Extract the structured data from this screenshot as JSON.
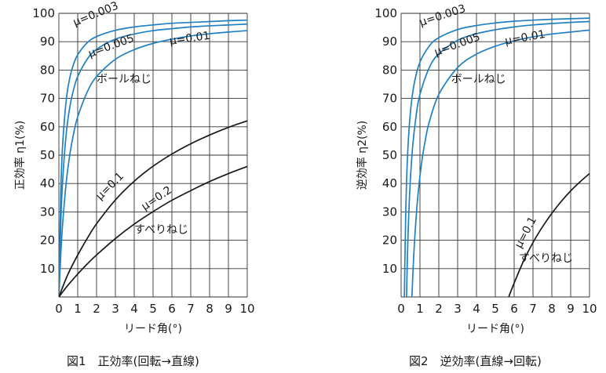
{
  "colors": {
    "ball": "#1f80c4",
    "sliding": "#1a1a1a",
    "grid": "#333333"
  },
  "chart_data": [
    {
      "type": "line",
      "caption": "図1　正効率(回転→直線)",
      "xlabel": "リード角(°)",
      "ylabel": "正効率 η1(%)",
      "xlim": [
        0,
        10
      ],
      "ylim": [
        0,
        100
      ],
      "x_ticks": [
        "0",
        "1",
        "2",
        "3",
        "4",
        "5",
        "6",
        "7",
        "8",
        "9",
        "10"
      ],
      "y_ticks": [
        "10",
        "20",
        "30",
        "40",
        "50",
        "60",
        "70",
        "80",
        "90",
        "100"
      ],
      "grid": true,
      "series": [
        {
          "name": "μ=0.003",
          "group": "ball",
          "x": [
            0,
            0.1,
            0.2,
            0.4,
            0.6,
            0.8,
            1,
            1.5,
            2,
            3,
            4,
            5,
            6,
            7,
            8,
            9,
            10
          ],
          "y": [
            0,
            36.4,
            53.6,
            70.0,
            77.9,
            82.4,
            85.4,
            89.6,
            91.8,
            94.0,
            95.2,
            95.9,
            96.5,
            96.8,
            97.1,
            97.4,
            97.6
          ]
        },
        {
          "name": "μ=0.005",
          "group": "ball",
          "x": [
            0,
            0.1,
            0.2,
            0.4,
            0.6,
            0.8,
            1,
            1.5,
            2,
            3,
            4,
            5,
            6,
            7,
            8,
            9,
            10
          ],
          "y": [
            0,
            25.8,
            41.0,
            58.2,
            67.7,
            73.6,
            77.7,
            83.8,
            87.3,
            90.9,
            92.7,
            93.9,
            94.6,
            95.2,
            95.6,
            95.9,
            96.2
          ]
        },
        {
          "name": "μ=0.01",
          "group": "ball",
          "x": [
            0,
            0.1,
            0.2,
            0.4,
            0.6,
            0.8,
            1,
            1.5,
            2,
            3,
            4,
            5,
            6,
            7,
            8,
            9,
            10
          ],
          "y": [
            0,
            14.8,
            25.8,
            41.0,
            51.0,
            58.2,
            63.5,
            72.2,
            77.7,
            83.8,
            87.2,
            89.4,
            90.9,
            92.0,
            92.8,
            93.4,
            93.9
          ]
        },
        {
          "name": "μ=0.1",
          "group": "sliding",
          "x": [
            0,
            0.25,
            0.5,
            1,
            1.5,
            2,
            3,
            4,
            5,
            6,
            7,
            8,
            9,
            10
          ],
          "y": [
            0,
            4.3,
            8.3,
            14.8,
            20.6,
            25.8,
            34.2,
            40.8,
            46.1,
            50.4,
            54.0,
            57.1,
            59.8,
            62.1
          ]
        },
        {
          "name": "μ=0.2",
          "group": "sliding",
          "x": [
            0,
            0.25,
            0.5,
            1,
            1.5,
            2,
            3,
            4,
            5,
            6,
            7,
            8,
            9,
            10
          ],
          "y": [
            0,
            2.2,
            4.3,
            8.1,
            11.6,
            14.8,
            20.6,
            25.7,
            30.1,
            34.1,
            37.5,
            40.7,
            43.5,
            46.0
          ]
        }
      ],
      "annotations": [
        {
          "text": "μ=0.003",
          "x": 0.85,
          "y": 95.5,
          "rotate": -22
        },
        {
          "text": "μ=0.005",
          "x": 1.65,
          "y": 84.5,
          "rotate": -20
        },
        {
          "text": "μ=0.01",
          "x": 5.9,
          "y": 89.0,
          "rotate": -8
        },
        {
          "text": "ボールねじ",
          "x": 2.0,
          "y": 75.5,
          "rotate": 0
        },
        {
          "text": "μ=0.1",
          "x": 2.2,
          "y": 34.0,
          "rotate": -45
        },
        {
          "text": "μ=0.2",
          "x": 4.55,
          "y": 30.5,
          "rotate": -34
        },
        {
          "text": "すべりねじ",
          "x": 4.0,
          "y": 22.5,
          "rotate": 0
        }
      ]
    },
    {
      "type": "line",
      "caption": "図2　逆効率(直線→回転)",
      "xlabel": "リード角(°)",
      "ylabel": "逆効率 η2(%)",
      "xlim": [
        0,
        10
      ],
      "ylim": [
        0,
        100
      ],
      "x_ticks": [
        "0",
        "1",
        "2",
        "3",
        "4",
        "5",
        "6",
        "7",
        "8",
        "9",
        "10"
      ],
      "y_ticks": [
        "10",
        "20",
        "30",
        "40",
        "50",
        "60",
        "70",
        "80",
        "90",
        "100"
      ],
      "grid": true,
      "series": [
        {
          "name": "μ=0.003",
          "group": "ball",
          "x": [
            0.172,
            0.25,
            0.35,
            0.5,
            0.7,
            1,
            1.5,
            2,
            3,
            4,
            5,
            6,
            7,
            8,
            9,
            10
          ],
          "y": [
            0,
            31.2,
            51.0,
            65.6,
            75.4,
            82.8,
            88.5,
            91.4,
            94.3,
            95.7,
            96.6,
            97.2,
            97.6,
            97.9,
            98.1,
            98.3
          ]
        },
        {
          "name": "μ=0.005",
          "group": "ball",
          "x": [
            0.287,
            0.35,
            0.45,
            0.6,
            0.8,
            1,
            1.5,
            2,
            3,
            4,
            5,
            6,
            7,
            8,
            9,
            10
          ],
          "y": [
            0,
            18.0,
            36.1,
            52.1,
            64.1,
            71.4,
            80.9,
            85.7,
            90.5,
            92.8,
            94.2,
            95.2,
            95.9,
            96.4,
            96.8,
            97.1
          ]
        },
        {
          "name": "μ=0.01",
          "group": "ball",
          "x": [
            0.573,
            0.65,
            0.75,
            0.9,
            1.1,
            1.3,
            1.5,
            2,
            3,
            4,
            5,
            6,
            7,
            8,
            9,
            10
          ],
          "y": [
            0,
            11.9,
            23.6,
            36.4,
            47.9,
            55.9,
            61.8,
            71.4,
            80.9,
            85.6,
            88.4,
            90.3,
            91.7,
            92.7,
            93.4,
            94.1
          ]
        },
        {
          "name": "μ=0.1",
          "group": "sliding",
          "x": [
            5.71,
            6,
            6.5,
            7,
            7.5,
            8,
            8.5,
            9,
            9.5,
            10
          ],
          "y": [
            0,
            4.9,
            12.7,
            19.2,
            24.7,
            29.5,
            33.7,
            37.4,
            40.6,
            43.5
          ]
        }
      ],
      "annotations": [
        {
          "text": "μ=0.003",
          "x": 1.05,
          "y": 95.5,
          "rotate": -18
        },
        {
          "text": "μ=0.005",
          "x": 1.85,
          "y": 85.0,
          "rotate": -20
        },
        {
          "text": "μ=0.01",
          "x": 5.55,
          "y": 89.0,
          "rotate": -10
        },
        {
          "text": "ボールねじ",
          "x": 2.65,
          "y": 75.5,
          "rotate": 0
        },
        {
          "text": "μ=0.1",
          "x": 6.35,
          "y": 17.0,
          "rotate": -62
        },
        {
          "text": "すべりねじ",
          "x": 6.25,
          "y": 12.5,
          "rotate": 0
        }
      ]
    }
  ]
}
